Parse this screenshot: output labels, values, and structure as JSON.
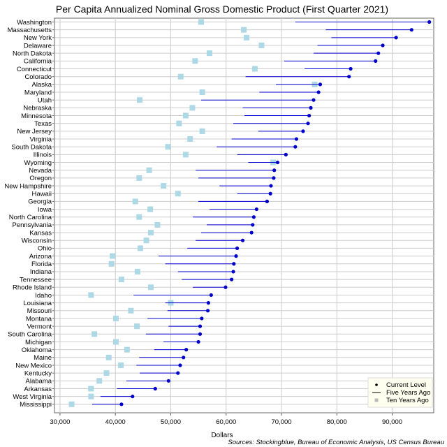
{
  "chart_data": {
    "type": "dot-range",
    "title": "Per Capita Annualized Nominal Gross Domestic Product (First Quarter 2021)",
    "xlabel": "Dollars",
    "source": "Sources: Stockingblue, Bureau of Economic Analysis, US Census Bureau",
    "xlim": [
      29000,
      97500
    ],
    "xticks": [
      30000,
      40000,
      50000,
      60000,
      70000,
      80000,
      90000
    ],
    "xtick_labels": [
      "30,000",
      "40,000",
      "50,000",
      "60,000",
      "70,000",
      "80,000",
      "90,000"
    ],
    "grid": true,
    "legend": {
      "placement": "bottom-right",
      "entries": [
        "Current Level",
        "Five Years Ago",
        "Ten Years Ago"
      ]
    },
    "colors": {
      "current": "#0000cc",
      "five_years": "#0000cc",
      "ten_years": "#add8e6",
      "grid": "#cccccc"
    },
    "states": [
      {
        "name": "Washington",
        "current": 96700,
        "five": 72500,
        "ten": 55500
      },
      {
        "name": "Massachusetts",
        "current": 93500,
        "five": 78000,
        "ten": 63200
      },
      {
        "name": "New York",
        "current": 90700,
        "five": 79000,
        "ten": 63700
      },
      {
        "name": "Delaware",
        "current": 88300,
        "five": 76500,
        "ten": 66400
      },
      {
        "name": "North Dakota",
        "current": 87500,
        "five": 75800,
        "ten": 57000
      },
      {
        "name": "California",
        "current": 87000,
        "five": 70500,
        "ten": 54400
      },
      {
        "name": "Connecticut",
        "current": 82500,
        "five": 74200,
        "ten": 65200
      },
      {
        "name": "Colorado",
        "current": 82200,
        "five": 63500,
        "ten": 51800
      },
      {
        "name": "Alaska",
        "current": 77000,
        "five": 69000,
        "ten": 76000
      },
      {
        "name": "Maryland",
        "current": 76700,
        "five": 66000,
        "ten": 55700
      },
      {
        "name": "Utah",
        "current": 75800,
        "five": 55500,
        "ten": 44400
      },
      {
        "name": "Nebraska",
        "current": 75300,
        "five": 63000,
        "ten": 53900
      },
      {
        "name": "Minnesota",
        "current": 75000,
        "five": 63300,
        "ten": 52700
      },
      {
        "name": "Texas",
        "current": 74800,
        "five": 61300,
        "ten": 51500
      },
      {
        "name": "New Jersey",
        "current": 73900,
        "five": 65800,
        "ten": 55700
      },
      {
        "name": "Virginia",
        "current": 72700,
        "five": 61000,
        "ten": 53500
      },
      {
        "name": "South Dakota",
        "current": 72500,
        "five": 58300,
        "ten": 49500
      },
      {
        "name": "Illinois",
        "current": 70800,
        "five": 62000,
        "ten": 52700
      },
      {
        "name": "Wyoming",
        "current": 69300,
        "five": 64000,
        "ten": 68500
      },
      {
        "name": "Nevada",
        "current": 68700,
        "five": 54500,
        "ten": 46100
      },
      {
        "name": "Oregon",
        "current": 68600,
        "five": 55000,
        "ten": 44300
      },
      {
        "name": "New Hampshire",
        "current": 68100,
        "five": 58800,
        "ten": 48700
      },
      {
        "name": "Hawaii",
        "current": 68000,
        "five": 62000,
        "ten": 51300
      },
      {
        "name": "Georgia",
        "current": 67400,
        "five": 55000,
        "ten": 43600
      },
      {
        "name": "Iowa",
        "current": 65500,
        "five": 57000,
        "ten": 46300
      },
      {
        "name": "North Carolina",
        "current": 65000,
        "five": 54000,
        "ten": 44300
      },
      {
        "name": "Pennsylvania",
        "current": 64800,
        "five": 56500,
        "ten": 47600
      },
      {
        "name": "Kansas",
        "current": 64600,
        "five": 55500,
        "ten": 46400
      },
      {
        "name": "Wisconsin",
        "current": 63000,
        "five": 54500,
        "ten": 45600
      },
      {
        "name": "Ohio",
        "current": 62000,
        "five": 53000,
        "ten": 44500
      },
      {
        "name": "Arizona",
        "current": 61800,
        "five": 47800,
        "ten": 39500
      },
      {
        "name": "Florida",
        "current": 61400,
        "five": 49000,
        "ten": 39300
      },
      {
        "name": "Indiana",
        "current": 61300,
        "five": 51300,
        "ten": 44000
      },
      {
        "name": "Tennessee",
        "current": 61000,
        "five": 52000,
        "ten": 41100
      },
      {
        "name": "Rhode Island",
        "current": 59900,
        "five": 54000,
        "ten": 46400
      },
      {
        "name": "Idaho",
        "current": 57300,
        "five": 43300,
        "ten": 35600
      },
      {
        "name": "Louisiana",
        "current": 56800,
        "five": 49000,
        "ten": 50000
      },
      {
        "name": "Missouri",
        "current": 56700,
        "five": 49400,
        "ten": 42800
      },
      {
        "name": "Montana",
        "current": 55600,
        "five": 45800,
        "ten": 40100
      },
      {
        "name": "Vermont",
        "current": 55300,
        "five": 49600,
        "ten": 43900
      },
      {
        "name": "South Carolina",
        "current": 55300,
        "five": 45500,
        "ten": 36200
      },
      {
        "name": "Michigan",
        "current": 55000,
        "five": 48700,
        "ten": 40100
      },
      {
        "name": "Oklahoma",
        "current": 52800,
        "five": 47000,
        "ten": 42100
      },
      {
        "name": "Maine",
        "current": 52300,
        "five": 44300,
        "ten": 38800
      },
      {
        "name": "New Mexico",
        "current": 51700,
        "five": 43800,
        "ten": 41000
      },
      {
        "name": "Kentucky",
        "current": 51300,
        "five": 44400,
        "ten": 38400
      },
      {
        "name": "Alabama",
        "current": 49600,
        "five": 42000,
        "ten": 37100
      },
      {
        "name": "Arkansas",
        "current": 47200,
        "five": 40300,
        "ten": 35600
      },
      {
        "name": "West Virginia",
        "current": 43100,
        "five": 37300,
        "ten": 35600
      },
      {
        "name": "Mississippi",
        "current": 41100,
        "five": 35800,
        "ten": 32100
      }
    ]
  }
}
